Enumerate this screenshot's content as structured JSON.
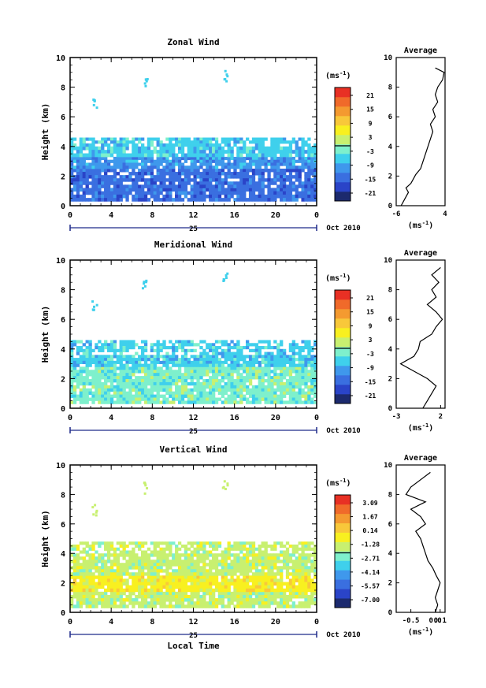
{
  "common": {
    "ylabel": "Height (km)",
    "xticks": [
      "0",
      "4",
      "8",
      "12",
      "16",
      "20",
      "0"
    ],
    "yticks": [
      "0",
      "2",
      "4",
      "6",
      "8",
      "10"
    ],
    "day_label": "25",
    "date_label": "Oct 2010",
    "xlabel_bottom": "Local Time",
    "unit_label": "(ms",
    "unit_sup": "-1",
    "unit_close": ")",
    "avg_title": "Average",
    "colormap": [
      "#1c2a6e",
      "#2a44c8",
      "#3a6fe0",
      "#3f98ec",
      "#3fd0ec",
      "#7ef0cc",
      "#c8f070",
      "#f8f020",
      "#f8c83a",
      "#f49a30",
      "#f06a2a",
      "#e83024"
    ]
  },
  "chart_data": [
    {
      "type": "heatmap",
      "title": "Zonal Wind",
      "xlim": [
        0,
        24
      ],
      "ylim": [
        0,
        10
      ],
      "colorbar_ticks": [
        "21",
        "15",
        "9",
        "3",
        "-3",
        "-9",
        "-15",
        "-21"
      ],
      "average_xticks": [
        "-6",
        "4"
      ],
      "average_xlim": [
        -6,
        4
      ],
      "average_profile": [
        [
          0.0,
          -5
        ],
        [
          0.3,
          -4.5
        ],
        [
          0.6,
          -4
        ],
        [
          0.9,
          -3.5
        ],
        [
          1.2,
          -4
        ],
        [
          1.5,
          -3
        ],
        [
          1.8,
          -2.5
        ],
        [
          2.1,
          -2
        ],
        [
          2.5,
          -1
        ],
        [
          3.0,
          -0.5
        ],
        [
          3.5,
          0
        ],
        [
          4.0,
          0.5
        ],
        [
          4.5,
          1
        ],
        [
          5.0,
          1.5
        ],
        [
          5.5,
          1
        ],
        [
          6.0,
          2
        ],
        [
          6.5,
          1.5
        ],
        [
          7.0,
          2.5
        ],
        [
          7.5,
          2
        ],
        [
          8.0,
          2.5
        ],
        [
          8.5,
          3.5
        ],
        [
          9.0,
          3.8
        ],
        [
          9.3,
          2
        ]
      ],
      "bands": [
        {
          "y": [
            0.3,
            1.2
          ],
          "color_index": 2
        },
        {
          "y": [
            1.2,
            2.5
          ],
          "color_index": 2
        },
        {
          "y": [
            2.5,
            3.3
          ],
          "color_index": 3
        },
        {
          "y": [
            3.3,
            4.0
          ],
          "color_index": 4
        },
        {
          "y": [
            4.0,
            4.6
          ],
          "color_index": 4
        }
      ]
    },
    {
      "type": "heatmap",
      "title": "Meridional Wind",
      "xlim": [
        0,
        24
      ],
      "ylim": [
        0,
        10
      ],
      "colorbar_ticks": [
        "21",
        "15",
        "9",
        "3",
        "-3",
        "-9",
        "-15",
        "-21"
      ],
      "average_xticks": [
        "-3",
        "2"
      ],
      "average_xlim": [
        -3,
        2.5
      ],
      "average_profile": [
        [
          0.0,
          0
        ],
        [
          0.5,
          0.5
        ],
        [
          1.0,
          1
        ],
        [
          1.5,
          1.5
        ],
        [
          2.0,
          0.5
        ],
        [
          2.5,
          -1
        ],
        [
          3.0,
          -2.5
        ],
        [
          3.5,
          -1
        ],
        [
          4.0,
          -0.5
        ],
        [
          4.5,
          -0.3
        ],
        [
          5.0,
          1
        ],
        [
          5.5,
          1.5
        ],
        [
          6.0,
          2.2
        ],
        [
          6.5,
          1.5
        ],
        [
          7.0,
          0.5
        ],
        [
          7.5,
          1.5
        ],
        [
          8.0,
          1
        ],
        [
          8.5,
          1.8
        ],
        [
          9.0,
          1
        ],
        [
          9.5,
          2
        ]
      ],
      "bands": [
        {
          "y": [
            0.3,
            2.8
          ],
          "color_index": 5
        },
        {
          "y": [
            2.8,
            3.6
          ],
          "color_index": 4
        },
        {
          "y": [
            3.6,
            4.6
          ],
          "color_index": 4
        }
      ]
    },
    {
      "type": "heatmap",
      "title": "Vertical Wind",
      "xlim": [
        0,
        24
      ],
      "ylim": [
        0,
        10
      ],
      "colorbar_ticks": [
        "3.09",
        "1.67",
        "0.14",
        "-1.28",
        "-2.71",
        "-4.14",
        "-5.57",
        "-7.00"
      ],
      "average_xticks": [
        "-0.5",
        "0.0",
        "0.1"
      ],
      "average_xlim": [
        -0.8,
        0.2
      ],
      "average_profile": [
        [
          0.0,
          0.0
        ],
        [
          0.5,
          0.05
        ],
        [
          1.0,
          0.0
        ],
        [
          1.5,
          0.05
        ],
        [
          2.0,
          0.1
        ],
        [
          2.5,
          0.02
        ],
        [
          3.0,
          -0.05
        ],
        [
          3.5,
          -0.15
        ],
        [
          4.0,
          -0.2
        ],
        [
          4.5,
          -0.25
        ],
        [
          5.0,
          -0.3
        ],
        [
          5.5,
          -0.4
        ],
        [
          6.0,
          -0.2
        ],
        [
          6.5,
          -0.3
        ],
        [
          7.0,
          -0.5
        ],
        [
          7.5,
          -0.2
        ],
        [
          8.0,
          -0.6
        ],
        [
          8.5,
          -0.5
        ],
        [
          9.0,
          -0.3
        ],
        [
          9.5,
          -0.1
        ]
      ],
      "bands": [
        {
          "y": [
            0.3,
            1.4
          ],
          "color_index": 6
        },
        {
          "y": [
            1.4,
            2.5
          ],
          "color_index": 7
        },
        {
          "y": [
            2.5,
            4.0
          ],
          "color_index": 6
        },
        {
          "y": [
            4.0,
            4.8
          ],
          "color_index": 6
        }
      ]
    }
  ]
}
